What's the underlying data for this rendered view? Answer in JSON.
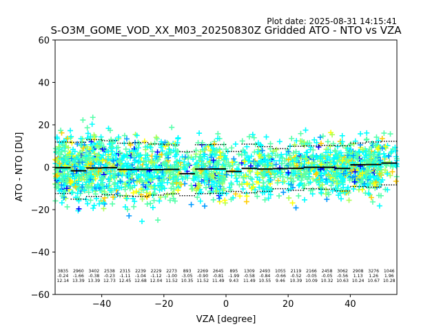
{
  "chart_data": {
    "type": "scatter",
    "title": "S-O3M_GOME_VOD_XX_M03_20250830Z Gridded ATO - NTO vs VZA",
    "plot_date": "Plot date: 2025-08-31 14:15:41",
    "xlabel": "VZA [degree]",
    "ylabel": "ATO - NTO [DU]",
    "xlim": [
      -55,
      55
    ],
    "ylim": [
      -60,
      60
    ],
    "xticks": [
      -40,
      -20,
      0,
      20,
      40
    ],
    "yticks": [
      -60,
      -40,
      -20,
      0,
      20,
      40,
      60
    ],
    "point_colors": [
      "#00ffff",
      "#55ffaa",
      "#aaff55",
      "#ffff00",
      "#ffcc00",
      "#0000ff",
      "#0099ff"
    ],
    "bins": [
      {
        "x": -52.5,
        "count": "3835",
        "mean": "-0.24",
        "std": "12.14",
        "mean_val": -0.24,
        "std_val": 12.14
      },
      {
        "x": -47.5,
        "count": "2960",
        "mean": "-1.66",
        "std": "13.39",
        "mean_val": -1.66,
        "std_val": 13.39
      },
      {
        "x": -42.5,
        "count": "3402",
        "mean": "-0.38",
        "std": "13.39",
        "mean_val": -0.38,
        "std_val": 13.39
      },
      {
        "x": -37.5,
        "count": "2538",
        "mean": "-0.23",
        "std": "12.73",
        "mean_val": -0.23,
        "std_val": 12.73
      },
      {
        "x": -32.5,
        "count": "2315",
        "mean": "-1.11",
        "std": "12.45",
        "mean_val": -1.11,
        "std_val": 12.45
      },
      {
        "x": -27.5,
        "count": "2239",
        "mean": "-1.04",
        "std": "12.68",
        "mean_val": -1.04,
        "std_val": 12.68
      },
      {
        "x": -22.5,
        "count": "2229",
        "mean": "-1.12",
        "std": "12.04",
        "mean_val": -1.12,
        "std_val": 12.04
      },
      {
        "x": -17.5,
        "count": "2273",
        "mean": "-1.00",
        "std": "11.52",
        "mean_val": -1.0,
        "std_val": 11.52
      },
      {
        "x": -12.5,
        "count": "893",
        "mean": "-3.05",
        "std": "10.35",
        "mean_val": -3.05,
        "std_val": 10.35
      },
      {
        "x": -7.5,
        "count": "2269",
        "mean": "-0.90",
        "std": "11.52",
        "mean_val": -0.9,
        "std_val": 11.52
      },
      {
        "x": -2.5,
        "count": "2645",
        "mean": "-0.81",
        "std": "11.49",
        "mean_val": -0.81,
        "std_val": 11.49
      },
      {
        "x": 2.5,
        "count": "895",
        "mean": "-1.99",
        "std": "9.43",
        "mean_val": -1.99,
        "std_val": 9.43
      },
      {
        "x": 7.5,
        "count": "1309",
        "mean": "-0.58",
        "std": "11.49",
        "mean_val": -0.58,
        "std_val": 11.49
      },
      {
        "x": 12.5,
        "count": "2493",
        "mean": "-0.84",
        "std": "10.55",
        "mean_val": -0.84,
        "std_val": 10.55
      },
      {
        "x": 17.5,
        "count": "1055",
        "mean": "-0.66",
        "std": "9.46",
        "mean_val": -0.66,
        "std_val": 9.46
      },
      {
        "x": 22.5,
        "count": "2119",
        "mean": "-0.52",
        "std": "10.39",
        "mean_val": -0.52,
        "std_val": 10.39
      },
      {
        "x": 27.5,
        "count": "2166",
        "mean": "-0.05",
        "std": "10.09",
        "mean_val": -0.05,
        "std_val": 10.09
      },
      {
        "x": 32.5,
        "count": "2458",
        "mean": "-0.05",
        "std": "10.32",
        "mean_val": -0.05,
        "std_val": 10.32
      },
      {
        "x": 37.5,
        "count": "3062",
        "mean": "-0.56",
        "std": "10.63",
        "mean_val": -0.56,
        "std_val": 10.63
      },
      {
        "x": 42.5,
        "count": "2908",
        "mean": "1.13",
        "std": "10.24",
        "mean_val": 1.13,
        "std_val": 10.24
      },
      {
        "x": 47.5,
        "count": "3276",
        "mean": "1.26",
        "std": "10.67",
        "mean_val": 1.26,
        "std_val": 10.67
      },
      {
        "x": 52.5,
        "count": "1046",
        "mean": "1.96",
        "std": "10.28",
        "mean_val": 1.96,
        "std_val": 10.28
      }
    ]
  }
}
